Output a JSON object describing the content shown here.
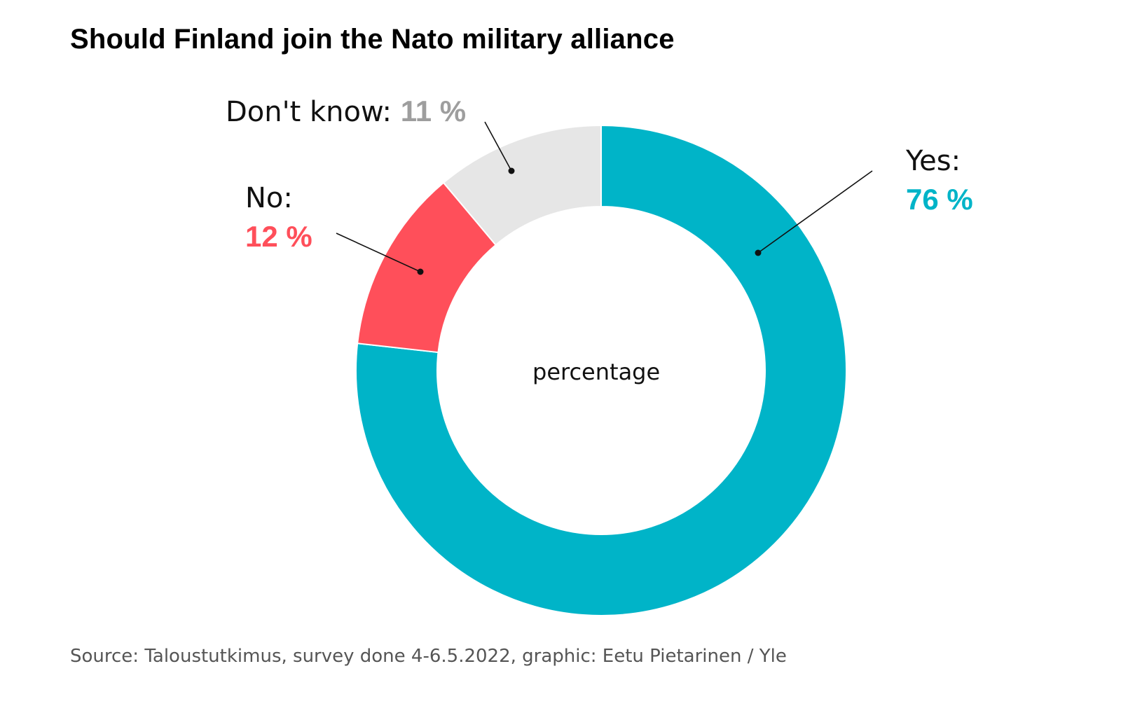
{
  "title": "Should Finland join the Nato military alliance",
  "chart_data": {
    "type": "pie",
    "variant": "donut",
    "title": "Should Finland join the Nato military alliance",
    "center_label": "percentage",
    "slices": [
      {
        "label": "Yes:",
        "value": 76,
        "value_text": "76 %",
        "color": "#00b4c8"
      },
      {
        "label": "No:",
        "value": 12,
        "value_text": "12 %",
        "color": "#ff4f5a"
      },
      {
        "label": "Don't know:",
        "value": 11,
        "value_text": "11 %",
        "color": "#e6e6e6"
      }
    ],
    "value_label_colors": {
      "Yes:": "#00b4c8",
      "No:": "#ff4f5a",
      "Don't know:": "#9e9e9e"
    }
  },
  "source": "Source: Taloustutkimus, survey done 4-6.5.2022, graphic: Eetu Pietarinen / Yle"
}
